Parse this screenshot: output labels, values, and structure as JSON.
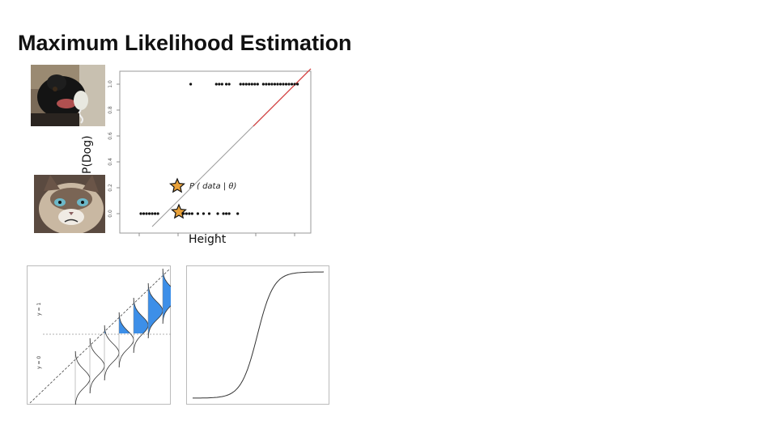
{
  "slide": {
    "title": "Maximum Likelihood Estimation"
  },
  "scatter": {
    "ylabel": "P(Dog)",
    "xlabel": "Height",
    "annotation_fn": "P",
    "annotation_arg": "( data | θ)",
    "ytick_labels": [
      "0.0",
      "0.2",
      "0.4",
      "0.6",
      "0.8",
      "1.0"
    ],
    "dog_image": "black-dog-photo",
    "cat_image": "grumpy-cat-photo",
    "star_marker": "star-icon",
    "colors": {
      "fit_line": "#d83a3a",
      "points": "#111111",
      "star_fill": "#e8a13a",
      "box": "#999999"
    }
  },
  "chart_data": {
    "type": "scatter",
    "ylabel": "P(Dog)",
    "xlabel": "Height",
    "ylim": [
      0,
      1
    ],
    "yticks": [
      0.0,
      0.2,
      0.4,
      0.6,
      0.8,
      1.0
    ],
    "series": [
      {
        "points_y1_x": [
          0.35,
          0.53,
          0.55,
          0.57,
          0.6,
          0.62,
          0.7,
          0.72,
          0.74,
          0.76,
          0.78,
          0.8,
          0.82,
          0.86,
          0.88,
          0.9,
          0.92,
          0.94,
          0.96,
          0.98,
          1.0,
          1.02,
          1.04,
          1.06,
          1.08,
          1.1
        ]
      },
      {
        "points_y0_x": [
          0.0,
          0.02,
          0.04,
          0.06,
          0.08,
          0.1,
          0.12,
          0.26,
          0.28,
          0.3,
          0.32,
          0.34,
          0.36,
          0.4,
          0.44,
          0.48,
          0.54,
          0.58,
          0.6,
          0.62,
          0.68
        ]
      }
    ]
  },
  "bottom_left": {
    "y1_label": "y = 1",
    "y0_label": "y = 0",
    "fill_color": "#3d8fe8"
  },
  "bottom_right": {
    "curve": "sigmoid"
  }
}
